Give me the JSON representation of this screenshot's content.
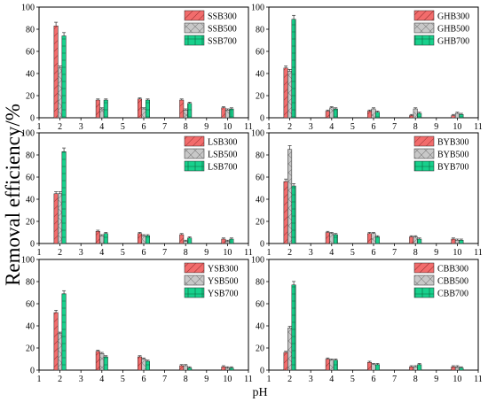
{
  "figure": {
    "ylabel": "Removal efficiency/%",
    "xlabel": "pH",
    "y_ticks": [
      "0",
      "20",
      "40",
      "60",
      "80",
      "100"
    ],
    "x_ticks": [
      "1",
      "2",
      "3",
      "4",
      "5",
      "6",
      "7",
      "8",
      "9",
      "10",
      "11"
    ]
  },
  "colors": {
    "c300": "#f26c6c",
    "c500": "#c8c8c8",
    "c700": "#18d08c"
  },
  "chart_data": [
    {
      "type": "bar",
      "panel": "top-left",
      "ylim": [
        0,
        100
      ],
      "xlim": [
        1,
        11
      ],
      "categories": [
        "2",
        "4",
        "6",
        "8",
        "10"
      ],
      "series": [
        {
          "name": "SSB300",
          "values": [
            83,
            16,
            17,
            16,
            9
          ]
        },
        {
          "name": "SSB500",
          "values": [
            45,
            8,
            8,
            7,
            7
          ]
        },
        {
          "name": "SSB700",
          "values": [
            74,
            16,
            16,
            13,
            8
          ]
        }
      ]
    },
    {
      "type": "bar",
      "panel": "top-right",
      "ylim": [
        0,
        100
      ],
      "xlim": [
        1,
        11
      ],
      "categories": [
        "2",
        "4",
        "6",
        "8",
        "10"
      ],
      "series": [
        {
          "name": "GHB300",
          "values": [
            45,
            6,
            6,
            2,
            2
          ]
        },
        {
          "name": "GHB500",
          "values": [
            42,
            9,
            8,
            8,
            4
          ]
        },
        {
          "name": "GHB700",
          "values": [
            89,
            8,
            5,
            4,
            3
          ]
        }
      ]
    },
    {
      "type": "bar",
      "panel": "middle-left",
      "ylim": [
        0,
        100
      ],
      "xlim": [
        1,
        11
      ],
      "categories": [
        "2",
        "4",
        "6",
        "8",
        "10"
      ],
      "series": [
        {
          "name": "LSB300",
          "values": [
            45,
            11,
            9,
            8,
            4
          ]
        },
        {
          "name": "LSB500",
          "values": [
            45,
            7,
            7,
            2,
            2
          ]
        },
        {
          "name": "LSB700",
          "values": [
            83,
            9,
            7,
            5,
            4
          ]
        }
      ]
    },
    {
      "type": "bar",
      "panel": "middle-right",
      "ylim": [
        0,
        100
      ],
      "xlim": [
        1,
        11
      ],
      "categories": [
        "2",
        "4",
        "6",
        "8",
        "10"
      ],
      "series": [
        {
          "name": "BYB300",
          "values": [
            56,
            10,
            9,
            6,
            4
          ]
        },
        {
          "name": "BYB500",
          "values": [
            85,
            9,
            9,
            6,
            3
          ]
        },
        {
          "name": "BYB700",
          "values": [
            52,
            8,
            6,
            4,
            3
          ]
        }
      ]
    },
    {
      "type": "bar",
      "panel": "bottom-left",
      "ylim": [
        0,
        100
      ],
      "xlim": [
        1,
        11
      ],
      "categories": [
        "2",
        "4",
        "6",
        "8",
        "10"
      ],
      "series": [
        {
          "name": "YSB300",
          "values": [
            52,
            17,
            12,
            4,
            3
          ]
        },
        {
          "name": "YSB500",
          "values": [
            33,
            15,
            10,
            4,
            2
          ]
        },
        {
          "name": "YSB700",
          "values": [
            69,
            12,
            8,
            2,
            2
          ]
        }
      ]
    },
    {
      "type": "bar",
      "panel": "bottom-right",
      "ylim": [
        0,
        100
      ],
      "xlim": [
        1,
        11
      ],
      "categories": [
        "2",
        "4",
        "6",
        "8",
        "10"
      ],
      "series": [
        {
          "name": "CBB300",
          "values": [
            16,
            10,
            7,
            3,
            3
          ]
        },
        {
          "name": "CBB500",
          "values": [
            38,
            9,
            5,
            3,
            3
          ]
        },
        {
          "name": "CBB700",
          "values": [
            77,
            9,
            5,
            5,
            2
          ]
        }
      ]
    }
  ]
}
